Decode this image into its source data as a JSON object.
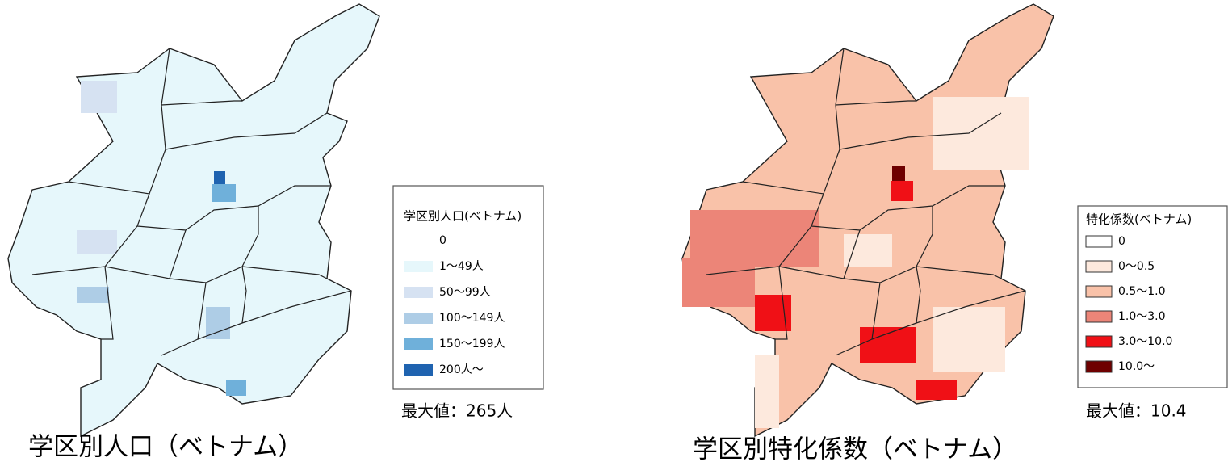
{
  "maps": [
    {
      "caption": "学区別人口（ベトナム）",
      "legend": {
        "title": "学区別人口(ベトナム)",
        "items": [
          {
            "label": "0",
            "color": "#ffffff"
          },
          {
            "label": "1〜49人",
            "color": "#e6f7fb"
          },
          {
            "label": "50〜99人",
            "color": "#d6e2f2"
          },
          {
            "label": "100〜149人",
            "color": "#aecde6"
          },
          {
            "label": "150〜199人",
            "color": "#6fb0da"
          },
          {
            "label": "200人〜",
            "color": "#1f63b0"
          }
        ]
      },
      "max_label": "最大値：265人"
    },
    {
      "caption": "学区別特化係数（ベトナム）",
      "legend": {
        "title": "特化係数(ベトナム)",
        "items": [
          {
            "label": "0",
            "color": "#ffffff"
          },
          {
            "label": "0〜0.5",
            "color": "#fde9dd"
          },
          {
            "label": "0.5〜1.0",
            "color": "#f9c2a9"
          },
          {
            "label": "1.0〜3.0",
            "color": "#ec8578"
          },
          {
            "label": "3.0〜10.0",
            "color": "#f01016"
          },
          {
            "label": "10.0〜",
            "color": "#6e0000"
          }
        ]
      },
      "max_label": "最大値：10.4"
    }
  ]
}
